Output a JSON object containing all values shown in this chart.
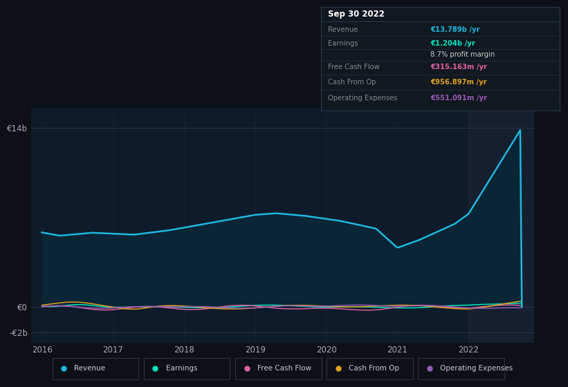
{
  "bg_color": "#0d1117",
  "plot_bg_color": "#0d1b2a",
  "grid_color": "#2a3a4a",
  "ylabel_color": "#aaaaaa",
  "xlabel_color": "#aaaaaa",
  "revenue_color": "#1fb8e0",
  "revenue_fill": "#0a2535",
  "earnings_color": "#00e5c0",
  "fcf_color": "#e060a0",
  "cashfromop_color": "#e0a020",
  "opex_color": "#9b59b6",
  "tooltip_bg": "#111820",
  "tooltip_border": "#2a3a4a",
  "tooltip_title": "Sep 30 2022",
  "tooltip_rows": [
    {
      "label": "Revenue",
      "value": "€13.789b /yr",
      "value_color": "#1fb8e0"
    },
    {
      "label": "Earnings",
      "value": "€1.204b /yr",
      "value_color": "#00e5c0"
    },
    {
      "label": "",
      "value": "8.7% profit margin",
      "value_color": "#cccccc"
    },
    {
      "label": "Free Cash Flow",
      "value": "€315.163m /yr",
      "value_color": "#e060a0"
    },
    {
      "label": "Cash From Op",
      "value": "€956.897m /yr",
      "value_color": "#e0a020"
    },
    {
      "label": "Operating Expenses",
      "value": "€551.091m /yr",
      "value_color": "#9b59b6"
    }
  ],
  "legend_items": [
    {
      "label": "Revenue",
      "color": "#1fb8e0"
    },
    {
      "label": "Earnings",
      "color": "#00e5c0"
    },
    {
      "label": "Free Cash Flow",
      "color": "#e060a0"
    },
    {
      "label": "Cash From Op",
      "color": "#e0a020"
    },
    {
      "label": "Operating Expenses",
      "color": "#9b59b6"
    }
  ]
}
